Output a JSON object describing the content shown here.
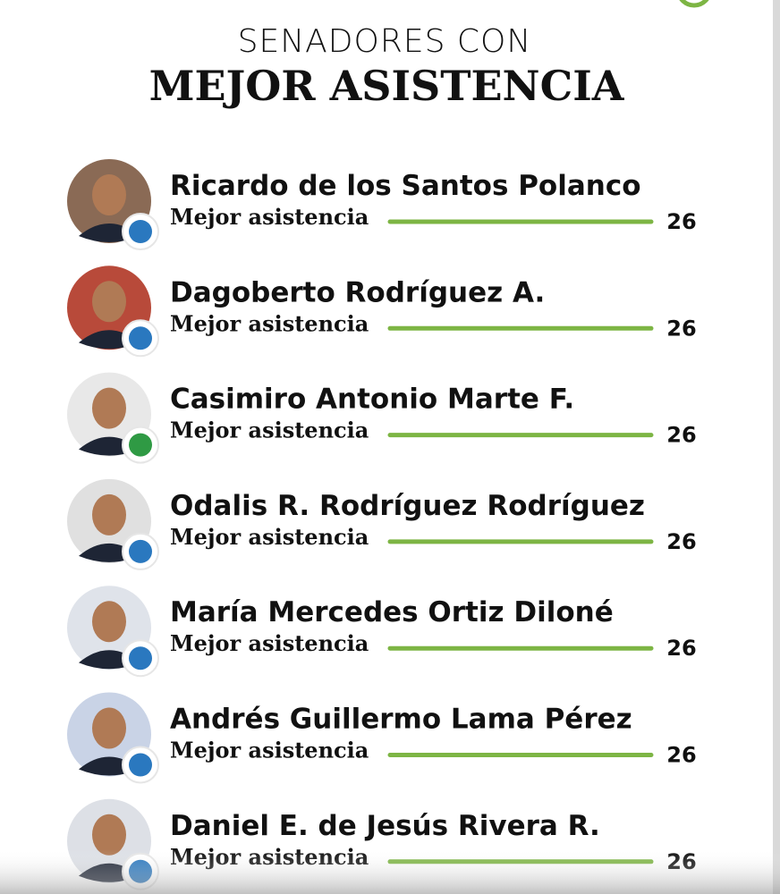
{
  "header": {
    "title_line1": "SENADORES CON",
    "title_line2": "MEJOR ASISTENCIA"
  },
  "rows": [
    {
      "name": "Ricardo de los Santos Polanco",
      "label": "Mejor asistencia",
      "value": 26
    },
    {
      "name": "Dagoberto Rodríguez A.",
      "label": "Mejor asistencia",
      "value": 26
    },
    {
      "name": "Casimiro Antonio Marte F.",
      "label": "Mejor asistencia",
      "value": 26
    },
    {
      "name": "Odalis R. Rodríguez Rodríguez",
      "label": "Mejor asistencia",
      "value": 26
    },
    {
      "name": "María Mercedes Ortiz Diloné",
      "label": "Mejor asistencia",
      "value": 26
    },
    {
      "name": "Andrés Guillermo Lama Pérez",
      "label": "Mejor asistencia",
      "value": 26
    },
    {
      "name": "Daniel E. de Jesús Rivera R.",
      "label": "Mejor asistencia",
      "value": 26
    }
  ]
}
